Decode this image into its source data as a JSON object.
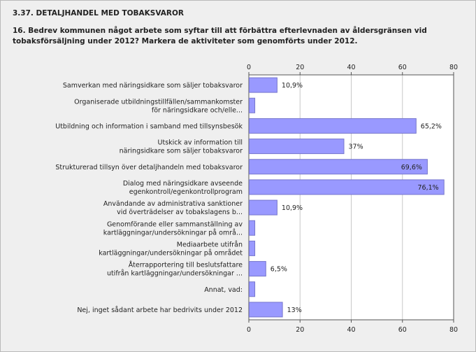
{
  "header": {
    "section_title": "3.37. DETALJHANDEL MED TOBAKSVAROR",
    "question": "16. Bedrev kommunen något arbete som syftar till att förbättra efterlevnaden av åldersgränsen vid tobaksförsäljning under 2012? Markera de aktiviteter som genomförts under 2012."
  },
  "chart_data": {
    "type": "bar",
    "orientation": "horizontal",
    "xlim": [
      0,
      80
    ],
    "ticks": [
      0,
      20,
      40,
      60,
      80
    ],
    "tick_labels": [
      "0",
      "20",
      "40",
      "60",
      "80"
    ],
    "grid": true,
    "categories": [
      [
        "Samverkan med näringsidkare som säljer tobaksvaror"
      ],
      [
        "Organiserade utbildningstillfällen/sammankomster",
        "för näringsidkare och/elle..."
      ],
      [
        "Utbildning och information i samband med tillsynsbesök"
      ],
      [
        "Utskick av information till",
        "näringsidkare som säljer tobaksvaror"
      ],
      [
        "Strukturerad tillsyn över detaljhandeln med tobaksvaror"
      ],
      [
        "Dialog med näringsidkare avseende",
        "egenkontroll/egenkontrollprogram"
      ],
      [
        "Användande av administrativa sanktioner",
        "vid överträdelser av tobakslagens b..."
      ],
      [
        "Genomförande eller sammanställning av",
        "kartläggningar/undersökningar på områ..."
      ],
      [
        "Mediaarbete utifrån",
        "kartläggningar/undersökningar på området"
      ],
      [
        "Återrapportering till beslutsfattare",
        "utifrån kartläggningar/undersökningar ..."
      ],
      [
        "Annat, vad:"
      ],
      [
        "Nej, inget sådant arbete har bedrivits under 2012"
      ]
    ],
    "values": [
      10.9,
      2.2,
      65.2,
      37.0,
      69.6,
      76.1,
      10.9,
      2.2,
      2.2,
      6.5,
      2.2,
      13.0
    ],
    "value_labels": [
      "10,9%",
      "",
      "65,2%",
      "37%",
      "69,6%",
      "76,1%",
      "10,9%",
      "",
      "",
      "6,5%",
      "",
      "13%"
    ],
    "colors": {
      "bar_fill": "#9999ff",
      "bar_stroke": "#7777cc",
      "plot_bg": "#ffffff",
      "grid": "#c8c8c8"
    }
  }
}
